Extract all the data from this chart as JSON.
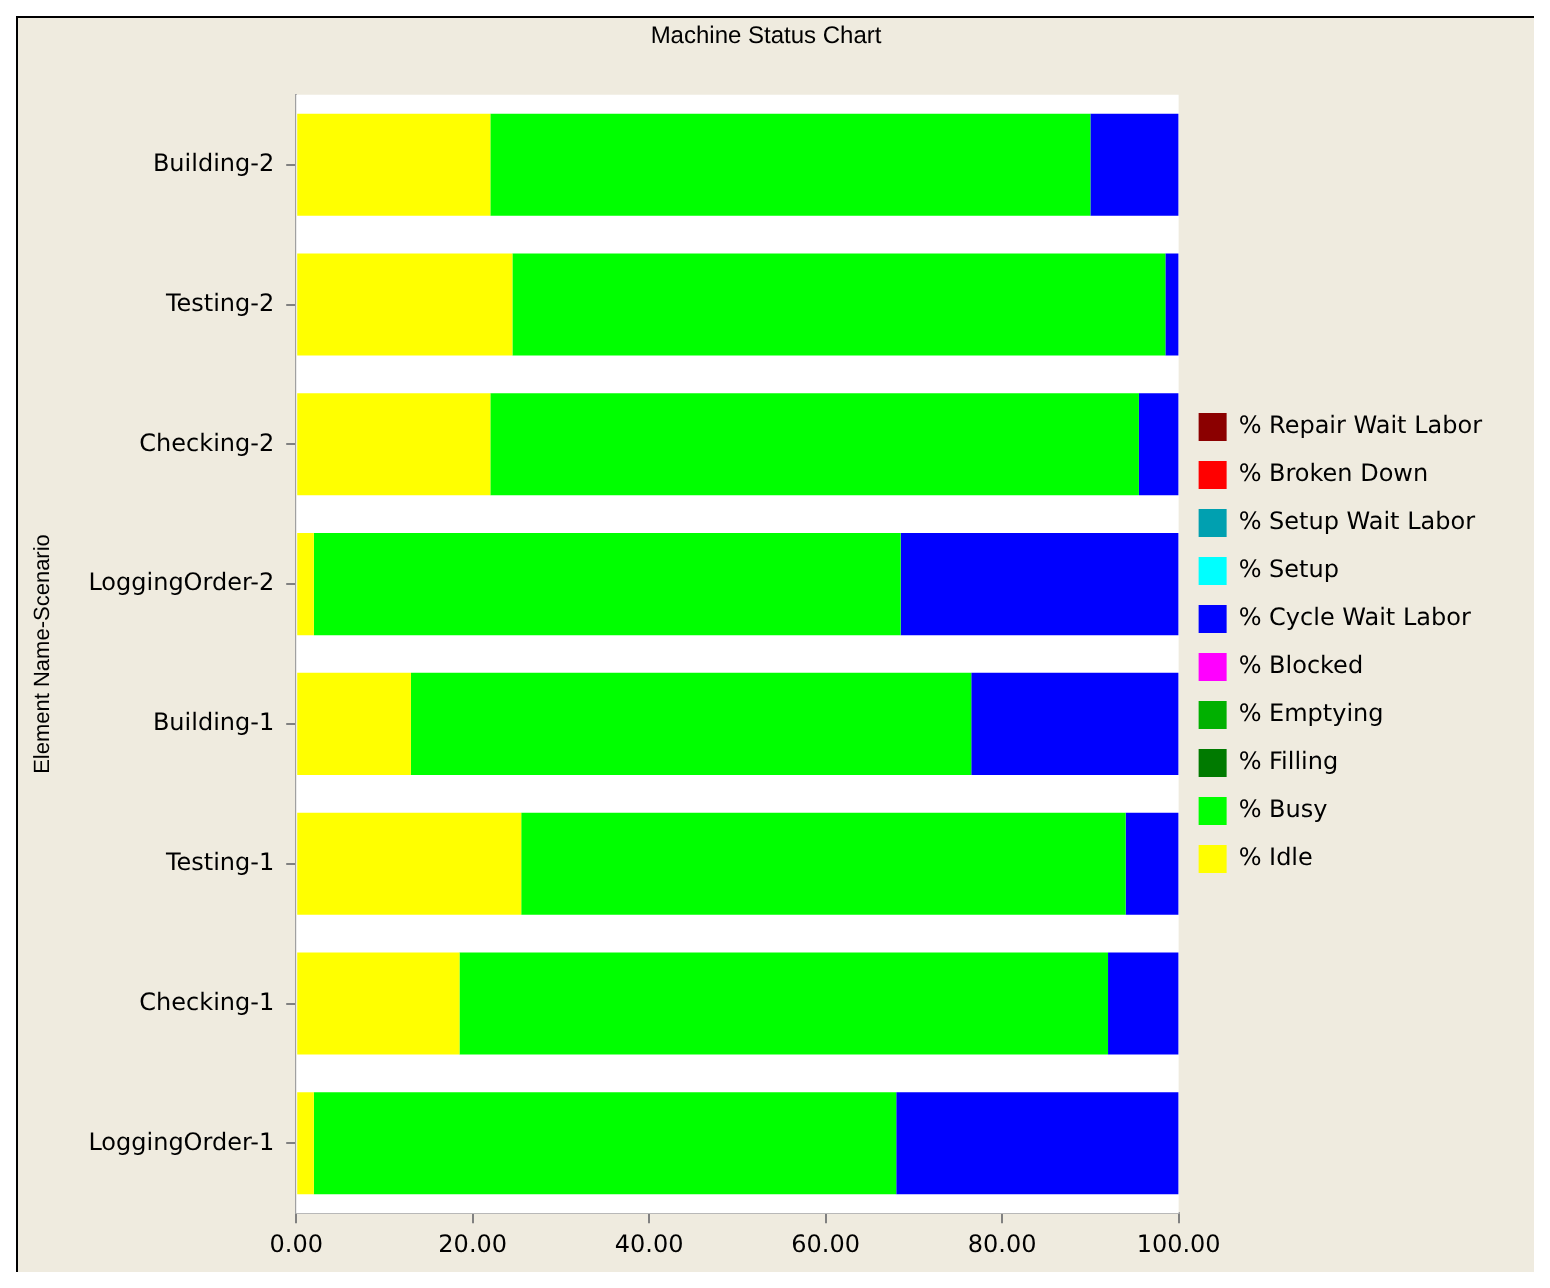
{
  "chart_data": {
    "type": "bar",
    "title": "Machine Status Chart",
    "ylabel": "Element Name-Scenario",
    "orientation": "horizontal",
    "stacked": true,
    "categories": [
      "Building-2",
      "Testing-2",
      "Checking-2",
      "LoggingOrder-2",
      "Building-1",
      "Testing-1",
      "Checking-1",
      "LoggingOrder-1"
    ],
    "series": [
      {
        "name": "% Idle",
        "color": "#ffff00",
        "values": [
          22,
          24.5,
          22,
          2,
          13,
          25.5,
          18.5,
          2
        ]
      },
      {
        "name": "% Busy",
        "color": "#00ff00",
        "values": [
          68,
          74,
          73.5,
          66.5,
          63.5,
          68.5,
          73.5,
          66
        ]
      },
      {
        "name": "% Filling",
        "color": "#007a00",
        "values": [
          0,
          0,
          0,
          0,
          0,
          0,
          0,
          0
        ]
      },
      {
        "name": "% Emptying",
        "color": "#00b000",
        "values": [
          0,
          0,
          0,
          0,
          0,
          0,
          0,
          0
        ]
      },
      {
        "name": "% Blocked",
        "color": "#ff00ff",
        "values": [
          0,
          0,
          0,
          0,
          0,
          0,
          0,
          0
        ]
      },
      {
        "name": "% Cycle Wait Labor",
        "color": "#0000ff",
        "values": [
          10,
          1.5,
          4.5,
          31.5,
          23.5,
          6,
          8,
          32
        ]
      },
      {
        "name": "% Setup",
        "color": "#00ffff",
        "values": [
          0,
          0,
          0,
          0,
          0,
          0,
          0,
          0
        ]
      },
      {
        "name": "% Setup Wait Labor",
        "color": "#00a0b0",
        "values": [
          0,
          0,
          0,
          0,
          0,
          0,
          0,
          0
        ]
      },
      {
        "name": "% Broken Down",
        "color": "#ff0000",
        "values": [
          0,
          0,
          0,
          0,
          0,
          0,
          0,
          0
        ]
      },
      {
        "name": "% Repair Wait Labor",
        "color": "#8b0000",
        "values": [
          0,
          0,
          0,
          0,
          0,
          0,
          0,
          0
        ]
      }
    ],
    "xlim": [
      0,
      100
    ],
    "xticks": [
      {
        "value": 0,
        "label": "0.00"
      },
      {
        "value": 20,
        "label": "20.00"
      },
      {
        "value": 40,
        "label": "40.00"
      },
      {
        "value": 60,
        "label": "60.00"
      },
      {
        "value": 80,
        "label": "80.00"
      },
      {
        "value": 100,
        "label": "100.00"
      }
    ],
    "legend": "right"
  }
}
